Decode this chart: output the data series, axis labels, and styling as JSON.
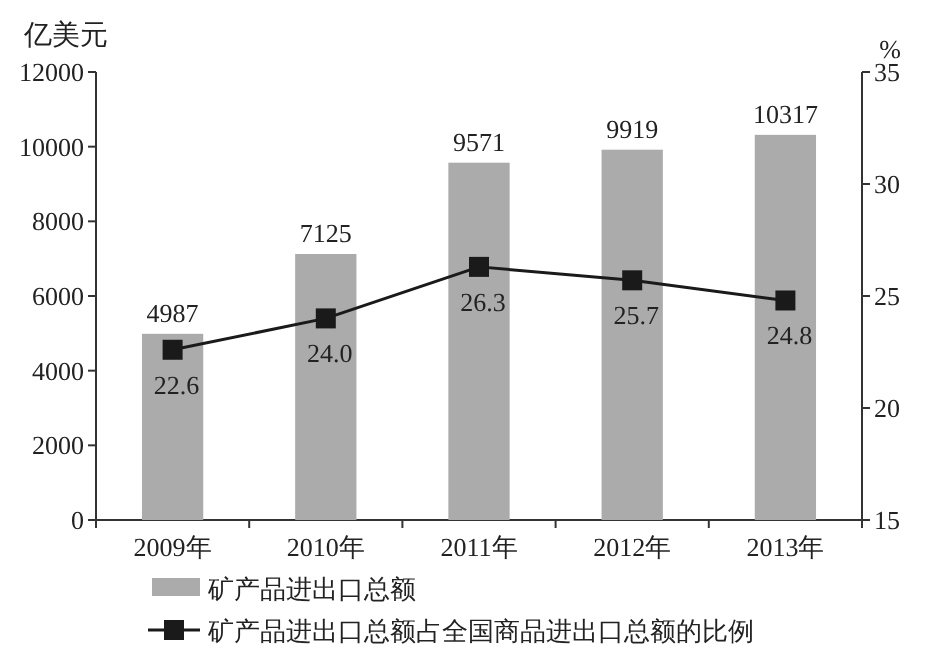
{
  "chart_data": {
    "type": "bar",
    "ylabel": "亿美元",
    "y2label": "%",
    "categories": [
      "2009年",
      "2010年",
      "2011年",
      "2012年",
      "2013年"
    ],
    "series": [
      {
        "name": "矿产品进出口总额",
        "color": "#ababab",
        "values": [
          4987,
          7125,
          9571,
          9919,
          10317
        ]
      },
      {
        "name": "矿产品进出口总额占全国商品进出口总额的比例",
        "type": "line",
        "axis": "y2",
        "color": "#1a1a1a",
        "marker": "square",
        "values": [
          22.6,
          24.0,
          26.3,
          25.7,
          24.8
        ],
        "value_labels": [
          "22.6",
          "24.0",
          "26.3",
          "25.7",
          "24.8"
        ]
      }
    ],
    "ylim": [
      0,
      12000
    ],
    "yticks": [
      0,
      2000,
      4000,
      6000,
      8000,
      10000,
      12000
    ],
    "y2lim": [
      15,
      35
    ],
    "y2ticks": [
      15,
      20,
      25,
      30,
      35
    ],
    "data_labels": true,
    "grid": false,
    "legend": "bottom"
  }
}
